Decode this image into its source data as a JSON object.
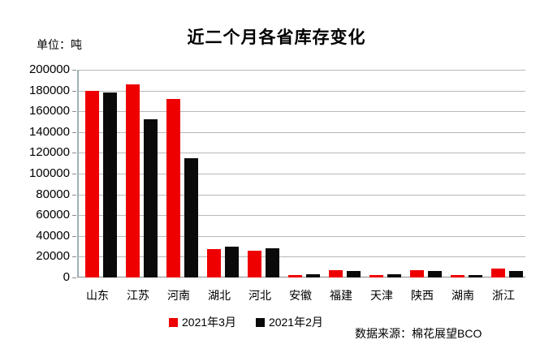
{
  "header": {
    "title": "近二个月各省库存变化",
    "unit_label": "单位：吨"
  },
  "footer": {
    "source": "数据来源：棉花展望BCO"
  },
  "chart_data": {
    "type": "bar",
    "title": "近二个月各省库存变化",
    "unit": "吨",
    "categories": [
      "山东",
      "江苏",
      "河南",
      "湖北",
      "河北",
      "安徽",
      "福建",
      "天津",
      "陕西",
      "湖南",
      "浙江"
    ],
    "series": [
      {
        "name": "2021年3月",
        "color": "#ee0000",
        "values": [
          180000,
          186000,
          172000,
          27000,
          26000,
          2500,
          7000,
          2000,
          7000,
          2000,
          8500
        ]
      },
      {
        "name": "2021年2月",
        "color": "#0a0a0a",
        "values": [
          178000,
          152000,
          115000,
          30000,
          28000,
          3500,
          6500,
          3500,
          6000,
          2500,
          6500
        ]
      }
    ],
    "xlabel": "",
    "ylabel": "单位：吨",
    "ylim": [
      0,
      200000
    ],
    "ytick_step": 20000,
    "grid": true,
    "legend_position": "bottom"
  }
}
